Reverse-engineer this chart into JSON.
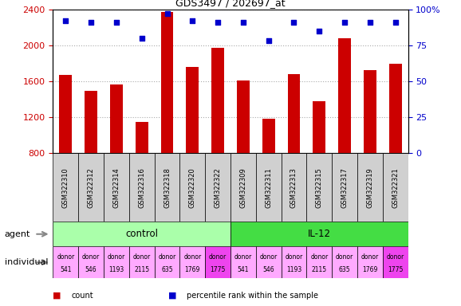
{
  "title": "GDS3497 / 202697_at",
  "gsm_labels": [
    "GSM322310",
    "GSM322312",
    "GSM322314",
    "GSM322316",
    "GSM322318",
    "GSM322320",
    "GSM322322",
    "GSM322309",
    "GSM322311",
    "GSM322313",
    "GSM322315",
    "GSM322317",
    "GSM322319",
    "GSM322321"
  ],
  "count_values": [
    1670,
    1490,
    1560,
    1150,
    2370,
    1760,
    1970,
    1610,
    1180,
    1680,
    1380,
    2080,
    1720,
    1790
  ],
  "percentile_values": [
    92,
    91,
    91,
    80,
    97,
    92,
    91,
    91,
    78,
    91,
    85,
    91,
    91,
    91
  ],
  "ylim_left": [
    800,
    2400
  ],
  "ylim_right": [
    0,
    100
  ],
  "yticks_left": [
    800,
    1200,
    1600,
    2000,
    2400
  ],
  "yticks_right": [
    0,
    25,
    50,
    75,
    100
  ],
  "bar_color": "#cc0000",
  "scatter_color": "#0000cc",
  "bar_width": 0.5,
  "agent_groups": [
    {
      "label": "control",
      "start": 0,
      "end": 7,
      "color": "#aaffaa"
    },
    {
      "label": "IL-12",
      "start": 7,
      "end": 14,
      "color": "#44dd44"
    }
  ],
  "individual_labels": [
    [
      "donor",
      "541"
    ],
    [
      "donor",
      "546"
    ],
    [
      "donor",
      "1193"
    ],
    [
      "donor",
      "2115"
    ],
    [
      "donor",
      "635"
    ],
    [
      "donor",
      "1769"
    ],
    [
      "donor",
      "1775"
    ],
    [
      "donor",
      "541"
    ],
    [
      "donor",
      "546"
    ],
    [
      "donor",
      "1193"
    ],
    [
      "donor",
      "2115"
    ],
    [
      "donor",
      "635"
    ],
    [
      "donor",
      "1769"
    ],
    [
      "donor",
      "1775"
    ]
  ],
  "individual_colors": [
    "#ffaaff",
    "#ffaaff",
    "#ffaaff",
    "#ffaaff",
    "#ffaaff",
    "#ffaaff",
    "#ee44ee",
    "#ffaaff",
    "#ffaaff",
    "#ffaaff",
    "#ffaaff",
    "#ffaaff",
    "#ffaaff",
    "#ee44ee"
  ],
  "grid_color": "#aaaaaa",
  "tick_label_color_left": "#cc0000",
  "tick_label_color_right": "#0000cc",
  "legend_items": [
    {
      "color": "#cc0000",
      "label": "count"
    },
    {
      "color": "#0000cc",
      "label": "percentile rank within the sample"
    }
  ]
}
